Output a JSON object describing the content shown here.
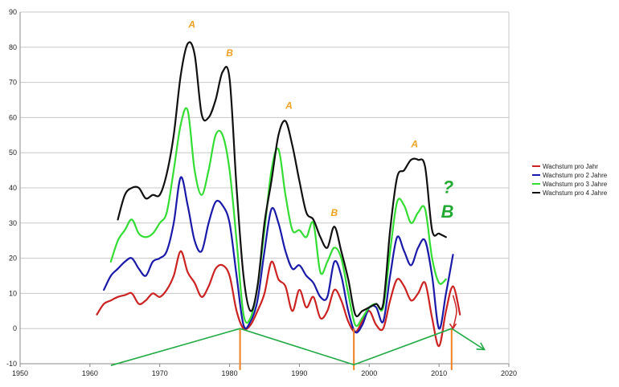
{
  "chart_data": {
    "type": "line",
    "title": "",
    "xlabel": "",
    "ylabel": "",
    "xlim": [
      1950,
      2020
    ],
    "ylim": [
      -10,
      90
    ],
    "x_ticks": [
      1950,
      1960,
      1970,
      1980,
      1990,
      2000,
      2010,
      2020
    ],
    "y_ticks": [
      -10,
      0,
      10,
      20,
      30,
      40,
      50,
      60,
      70,
      80,
      90
    ],
    "grid": "horizontal",
    "legend_position": "right",
    "series": [
      {
        "name": "Wachstum pro Jahr",
        "color": "#cc2222",
        "points": [
          [
            1961,
            4
          ],
          [
            1962,
            7
          ],
          [
            1963,
            8
          ],
          [
            1964,
            9
          ],
          [
            1965,
            9.5
          ],
          [
            1966,
            10
          ],
          [
            1967,
            7
          ],
          [
            1968,
            8
          ],
          [
            1969,
            10
          ],
          [
            1970,
            9
          ],
          [
            1971,
            11
          ],
          [
            1972,
            15
          ],
          [
            1973,
            22
          ],
          [
            1974,
            16
          ],
          [
            1975,
            13
          ],
          [
            1976,
            9
          ],
          [
            1977,
            12
          ],
          [
            1978,
            17
          ],
          [
            1979,
            18
          ],
          [
            1980,
            15
          ],
          [
            1981,
            5
          ],
          [
            1982,
            0
          ],
          [
            1983,
            1
          ],
          [
            1984,
            5
          ],
          [
            1985,
            10
          ],
          [
            1986,
            19
          ],
          [
            1987,
            14
          ],
          [
            1988,
            12
          ],
          [
            1989,
            5
          ],
          [
            1990,
            11
          ],
          [
            1991,
            6
          ],
          [
            1992,
            9
          ],
          [
            1993,
            3
          ],
          [
            1994,
            5
          ],
          [
            1995,
            11
          ],
          [
            1996,
            8
          ],
          [
            1997,
            2
          ],
          [
            1998,
            -1
          ],
          [
            1999,
            2
          ],
          [
            2000,
            5
          ],
          [
            2001,
            1
          ],
          [
            2002,
            0
          ],
          [
            2003,
            8
          ],
          [
            2004,
            14
          ],
          [
            2005,
            12
          ],
          [
            2006,
            8
          ],
          [
            2007,
            10
          ],
          [
            2008,
            13
          ],
          [
            2009,
            3
          ],
          [
            2010,
            -5
          ],
          [
            2011,
            5
          ],
          [
            2012,
            12
          ],
          [
            2013,
            4
          ]
        ]
      },
      {
        "name": "Wachstum pro 2 Jahre",
        "color": "#1a1aaa",
        "points": [
          [
            1962,
            11
          ],
          [
            1963,
            15
          ],
          [
            1964,
            17
          ],
          [
            1965,
            19
          ],
          [
            1966,
            20
          ],
          [
            1967,
            17
          ],
          [
            1968,
            15
          ],
          [
            1969,
            19
          ],
          [
            1970,
            20
          ],
          [
            1971,
            22
          ],
          [
            1972,
            30
          ],
          [
            1973,
            43
          ],
          [
            1974,
            35
          ],
          [
            1975,
            25
          ],
          [
            1976,
            22
          ],
          [
            1977,
            30
          ],
          [
            1978,
            36
          ],
          [
            1979,
            35
          ],
          [
            1980,
            30
          ],
          [
            1981,
            15
          ],
          [
            1982,
            1
          ],
          [
            1983,
            2
          ],
          [
            1984,
            8
          ],
          [
            1985,
            22
          ],
          [
            1986,
            34
          ],
          [
            1987,
            30
          ],
          [
            1988,
            22
          ],
          [
            1989,
            17
          ],
          [
            1990,
            18
          ],
          [
            1991,
            15
          ],
          [
            1992,
            13
          ],
          [
            1993,
            9
          ],
          [
            1994,
            9
          ],
          [
            1995,
            19
          ],
          [
            1996,
            15
          ],
          [
            1997,
            5
          ],
          [
            1998,
            -1
          ],
          [
            1999,
            1
          ],
          [
            2000,
            6
          ],
          [
            2001,
            6
          ],
          [
            2002,
            2
          ],
          [
            2003,
            15
          ],
          [
            2004,
            26
          ],
          [
            2005,
            22
          ],
          [
            2006,
            18
          ],
          [
            2007,
            23
          ],
          [
            2008,
            25
          ],
          [
            2009,
            15
          ],
          [
            2010,
            0
          ],
          [
            2011,
            10
          ],
          [
            2012,
            21
          ]
        ]
      },
      {
        "name": "Wachstum pro 3 Jahre",
        "color": "#33dd33",
        "points": [
          [
            1963,
            19
          ],
          [
            1964,
            25
          ],
          [
            1965,
            28
          ],
          [
            1966,
            31
          ],
          [
            1967,
            27
          ],
          [
            1968,
            26
          ],
          [
            1969,
            27
          ],
          [
            1970,
            30
          ],
          [
            1971,
            33
          ],
          [
            1972,
            45
          ],
          [
            1973,
            58
          ],
          [
            1974,
            62
          ],
          [
            1975,
            45
          ],
          [
            1976,
            38
          ],
          [
            1977,
            45
          ],
          [
            1978,
            55
          ],
          [
            1979,
            55
          ],
          [
            1980,
            45
          ],
          [
            1981,
            25
          ],
          [
            1982,
            4
          ],
          [
            1983,
            3
          ],
          [
            1984,
            12
          ],
          [
            1985,
            28
          ],
          [
            1986,
            45
          ],
          [
            1987,
            51
          ],
          [
            1988,
            38
          ],
          [
            1989,
            28
          ],
          [
            1990,
            28
          ],
          [
            1991,
            26
          ],
          [
            1992,
            30
          ],
          [
            1993,
            16
          ],
          [
            1994,
            19
          ],
          [
            1995,
            23
          ],
          [
            1996,
            20
          ],
          [
            1997,
            10
          ],
          [
            1998,
            1
          ],
          [
            1999,
            3
          ],
          [
            2000,
            6
          ],
          [
            2001,
            7
          ],
          [
            2002,
            6
          ],
          [
            2003,
            22
          ],
          [
            2004,
            36
          ],
          [
            2005,
            35
          ],
          [
            2006,
            30
          ],
          [
            2007,
            33
          ],
          [
            2008,
            34
          ],
          [
            2009,
            20
          ],
          [
            2010,
            13
          ],
          [
            2011,
            14
          ]
        ]
      },
      {
        "name": "Wachstum pro 4 Jahre",
        "color": "#111111",
        "points": [
          [
            1964,
            31
          ],
          [
            1965,
            38
          ],
          [
            1966,
            40
          ],
          [
            1967,
            40
          ],
          [
            1968,
            37
          ],
          [
            1969,
            38
          ],
          [
            1970,
            38
          ],
          [
            1971,
            44
          ],
          [
            1972,
            55
          ],
          [
            1973,
            72
          ],
          [
            1974,
            81
          ],
          [
            1975,
            78
          ],
          [
            1976,
            61
          ],
          [
            1977,
            60
          ],
          [
            1978,
            65
          ],
          [
            1979,
            73
          ],
          [
            1980,
            71
          ],
          [
            1981,
            40
          ],
          [
            1982,
            15
          ],
          [
            1983,
            5
          ],
          [
            1984,
            12
          ],
          [
            1985,
            30
          ],
          [
            1986,
            42
          ],
          [
            1987,
            55
          ],
          [
            1988,
            59
          ],
          [
            1989,
            52
          ],
          [
            1990,
            42
          ],
          [
            1991,
            33
          ],
          [
            1992,
            31
          ],
          [
            1993,
            26
          ],
          [
            1994,
            23
          ],
          [
            1995,
            29
          ],
          [
            1996,
            22
          ],
          [
            1997,
            14
          ],
          [
            1998,
            4
          ],
          [
            1999,
            5
          ],
          [
            2000,
            6
          ],
          [
            2001,
            7
          ],
          [
            2002,
            7
          ],
          [
            2003,
            28
          ],
          [
            2004,
            43
          ],
          [
            2005,
            45
          ],
          [
            2006,
            48
          ],
          [
            2007,
            48
          ],
          [
            2008,
            46
          ],
          [
            2009,
            28
          ],
          [
            2010,
            27
          ],
          [
            2011,
            26
          ]
        ]
      }
    ],
    "annotations": {
      "labels": [
        {
          "text": "A",
          "x": 1974.6,
          "y": 85.5,
          "color": "#f0a020"
        },
        {
          "text": "B",
          "x": 1980,
          "y": 77.5,
          "color": "#f0a020"
        },
        {
          "text": "A",
          "x": 1988.5,
          "y": 62.5,
          "color": "#f0a020"
        },
        {
          "text": "B",
          "x": 1995,
          "y": 32,
          "color": "#f0a020"
        },
        {
          "text": "A",
          "x": 2006.5,
          "y": 51.5,
          "color": "#f0a020"
        },
        {
          "text": "?",
          "x": 2011.3,
          "y": 38.5,
          "color": "#22aa33"
        },
        {
          "text": "B",
          "x": 2011.2,
          "y": 31.5,
          "color": "#22aa33"
        }
      ],
      "trend_line": {
        "color": "#22aa44",
        "points": [
          [
            1963,
            -10.5
          ],
          [
            1981.5,
            0
          ],
          [
            1997.8,
            -10.3
          ],
          [
            2011.8,
            0
          ],
          [
            2016.5,
            -6
          ]
        ]
      },
      "markers": {
        "color": "#f08020",
        "x_values": [
          1981.5,
          1997.8,
          2011.8
        ],
        "y_from": 0,
        "y_to": -11.8
      },
      "red_arrow": {
        "color": "#cc2222",
        "points": [
          [
            2012,
            9.5
          ],
          [
            2012.5,
            5
          ],
          [
            2012,
            0
          ]
        ]
      }
    }
  }
}
